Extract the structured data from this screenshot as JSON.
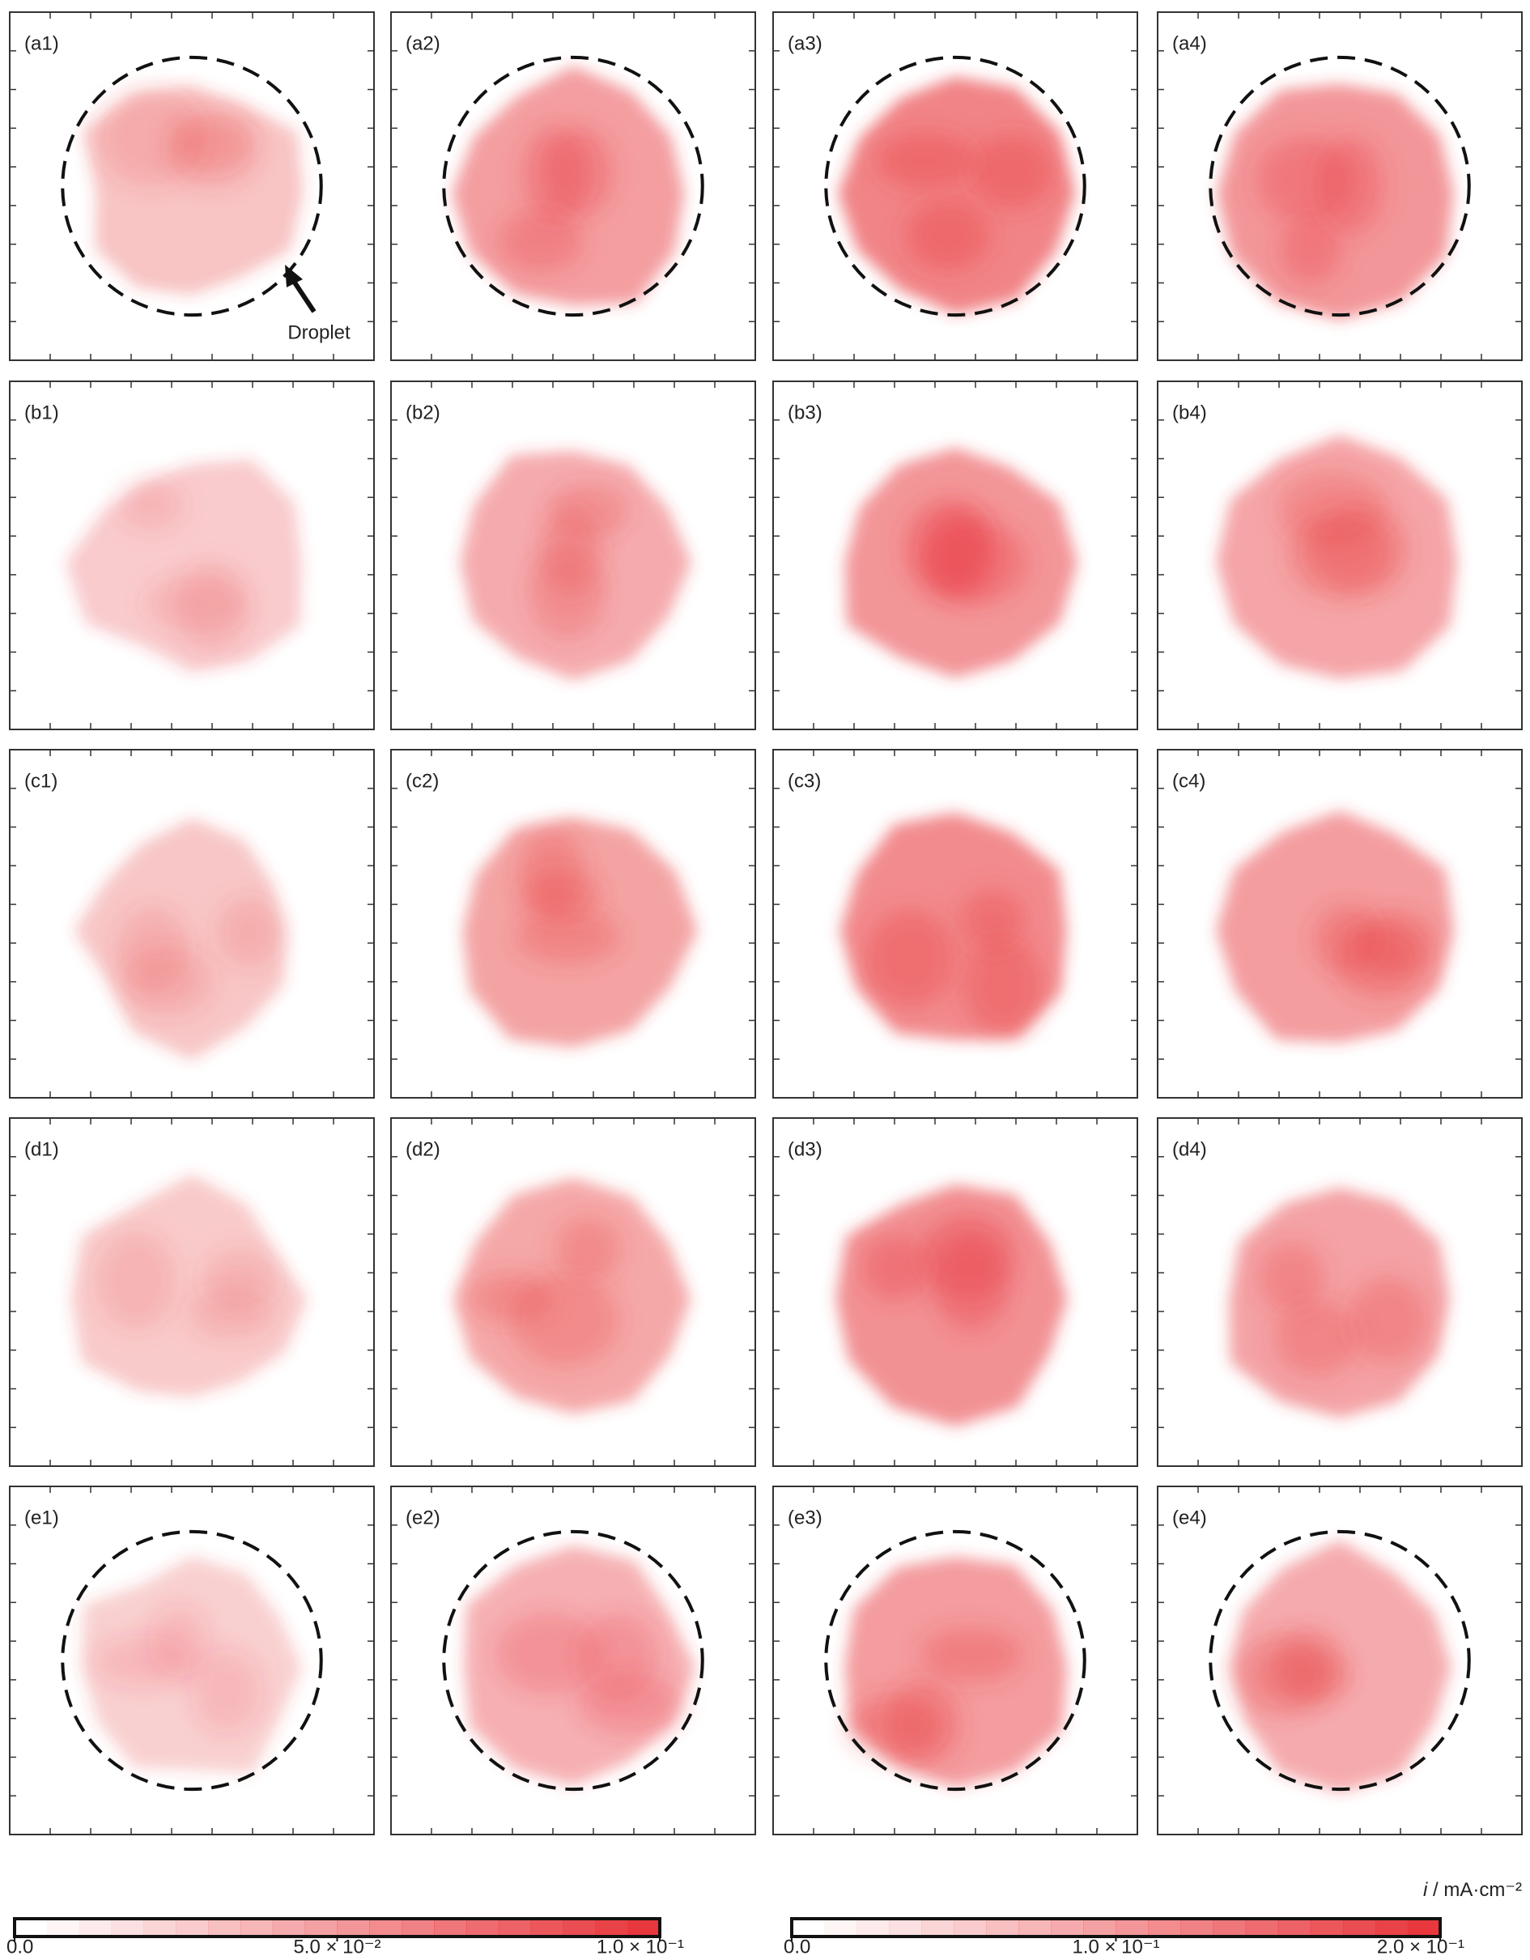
{
  "panels": [
    {
      "label": "(a1)"
    },
    {
      "label": "(a2)"
    },
    {
      "label": "(a3)"
    },
    {
      "label": "(a4)"
    },
    {
      "label": "(b1)"
    },
    {
      "label": "(b2)"
    },
    {
      "label": "(b3)"
    },
    {
      "label": "(b4)"
    },
    {
      "label": "(c1)"
    },
    {
      "label": "(c2)"
    },
    {
      "label": "(c3)"
    },
    {
      "label": "(c4)"
    },
    {
      "label": "(d1)"
    },
    {
      "label": "(d2)"
    },
    {
      "label": "(d3)"
    },
    {
      "label": "(d4)"
    },
    {
      "label": "(e1)"
    },
    {
      "label": "(e2)"
    },
    {
      "label": "(e3)"
    },
    {
      "label": "(e4)"
    }
  ],
  "annotation": "Droplet",
  "unit_label": {
    "symbol": "i",
    "unit": "/ mA·cm⁻²"
  },
  "colorbars": [
    {
      "lim": [
        0,
        0.1
      ],
      "ticks": [
        {
          "value": 0,
          "label": "0.0"
        },
        {
          "value": 0.05,
          "label": "5.0 × 10⁻²"
        },
        {
          "value": 0.1,
          "label": "1.0 × 10⁻¹"
        }
      ]
    },
    {
      "lim": [
        0,
        0.2
      ],
      "ticks": [
        {
          "value": 0,
          "label": "0.0"
        },
        {
          "value": 0.1,
          "label": "1.0 × 10⁻¹"
        },
        {
          "value": 0.2,
          "label": "2.0 × 10⁻¹"
        }
      ]
    }
  ]
}
